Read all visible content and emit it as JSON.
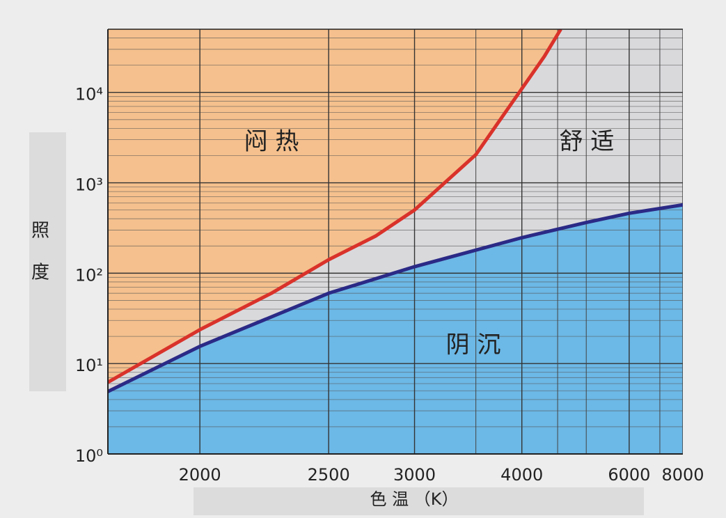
{
  "chart_data": {
    "type": "line",
    "x_label": "色 温 （K）",
    "y_label": [
      "照",
      "度"
    ],
    "xscale": "reciprocal",
    "yscale": "log",
    "xlim": [
      1750,
      8000
    ],
    "ylim": [
      1,
      50000
    ],
    "xticks": [
      2000,
      2500,
      3000,
      4000,
      6000,
      8000
    ],
    "xminor": [
      3500,
      4500,
      5000,
      7000
    ],
    "yticks": [
      {
        "value": 1,
        "label": "10⁰"
      },
      {
        "value": 10,
        "label": "10¹"
      },
      {
        "value": 100,
        "label": "10²"
      },
      {
        "value": 1000,
        "label": "10³"
      },
      {
        "value": 10000,
        "label": "10⁴"
      }
    ],
    "grid": true,
    "background_color": "#d9d9dc",
    "annotations": [
      "闷 热",
      "舒 适",
      "阴 沉"
    ],
    "series": [
      {
        "color": "#d9322a",
        "fill": "above",
        "fill_color": "#f5c08d",
        "x": [
          1750,
          2000,
          2250,
          2500,
          2750,
          3000,
          3500,
          4000,
          4300,
          4550
        ],
        "values": [
          6.2,
          23.7,
          60,
          141,
          257,
          500,
          2050,
          11000,
          25000,
          50000
        ]
      },
      {
        "color": "#2b2a86",
        "fill": "below",
        "fill_color": "#6cb8e6",
        "x": [
          1750,
          2000,
          2500,
          3000,
          4000,
          5000,
          6000,
          8000
        ],
        "values": [
          4.9,
          15.5,
          60,
          118,
          247,
          364,
          460,
          570
        ]
      }
    ]
  }
}
